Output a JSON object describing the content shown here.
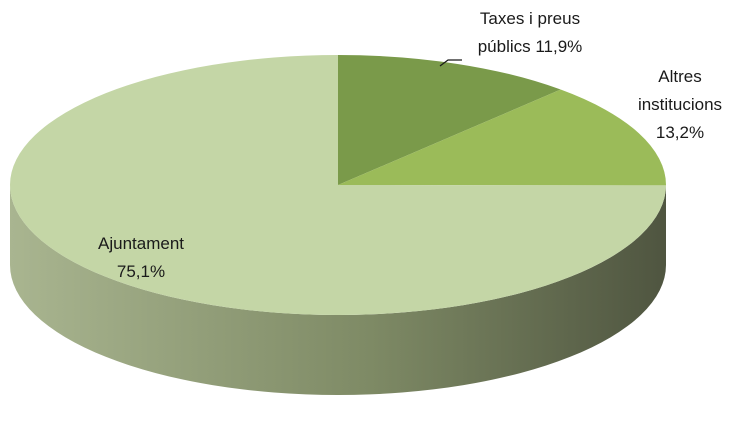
{
  "chart_data": {
    "type": "pie",
    "three_d": true,
    "start_angle": "12 o'clock",
    "direction": "clockwise",
    "slices": [
      {
        "label_lines": [
          "Taxes i preus",
          "públics  11,9%"
        ],
        "value": 11.9,
        "color": "#7a9a4a"
      },
      {
        "label_lines": [
          "Altres",
          "institucions",
          "13,2%"
        ],
        "value": 13.2,
        "color": "#9bbb59"
      },
      {
        "label_lines": [
          "Ajuntament",
          "75,1%"
        ],
        "value": 75.1,
        "color": "#c4d6a6"
      }
    ],
    "side_gradient": [
      "#a9b590",
      "#7e8a65",
      "#4f5540"
    ],
    "legend": "none"
  }
}
